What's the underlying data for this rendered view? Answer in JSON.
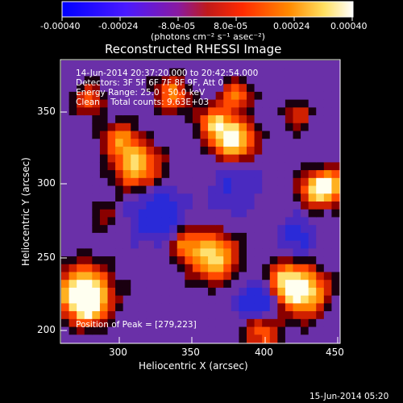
{
  "colorbar": {
    "min": -0.0004,
    "max": 0.0004,
    "tick_labels": [
      "-0.00040",
      "-0.00024",
      "-8.0e-05",
      "8.0e-05",
      "0.00024",
      "0.00040"
    ],
    "units_label": "(photons cm⁻² s⁻¹ asec⁻²)"
  },
  "image": {
    "title": "Reconstructed RHESSI Image",
    "info_lines": [
      "14-Jun-2014 20:37:20.000 to 20:42:54.000",
      "Detectors: 3F 5F 6F 7F 8F 9F, Att 0",
      "Energy Range: 25.0 - 50.0 keV",
      "Clean    Total counts: 9.63E+03"
    ],
    "peak_label": "Position of Peak = [279,223]",
    "xlabel": "Heliocentric X (arcsec)",
    "ylabel": "Heliocentric Y (arcsec)",
    "x_ticks": [
      "300",
      "350",
      "400",
      "450"
    ],
    "y_ticks": [
      "350",
      "300",
      "250",
      "200"
    ],
    "timestamp": "15-Jun-2014 05:20"
  },
  "palette": {
    "background": "#000000",
    "low": "#1a1aff",
    "mid": "#6a2aa8",
    "high": "#ffffe0"
  }
}
